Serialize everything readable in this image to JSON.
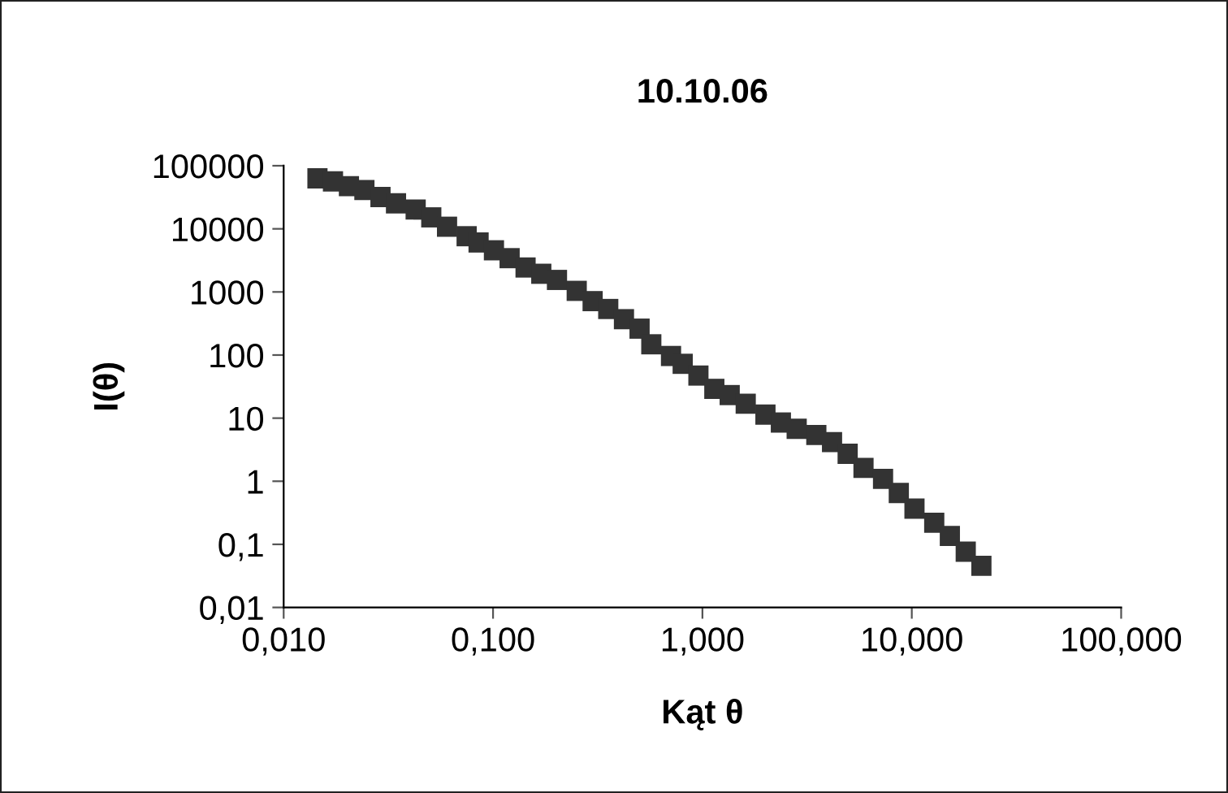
{
  "chart_data": {
    "type": "scatter",
    "title": "10.10.06",
    "xlabel": "Kąt θ",
    "ylabel": "I(θ)",
    "log": "xy",
    "grid": false,
    "legend": false,
    "marker": "square",
    "x": [
      0.0145,
      0.0172,
      0.0205,
      0.0243,
      0.029,
      0.0344,
      0.0427,
      0.0507,
      0.0603,
      0.0748,
      0.0853,
      0.101,
      0.12,
      0.143,
      0.17,
      0.202,
      0.251,
      0.299,
      0.355,
      0.422,
      0.501,
      0.57,
      0.708,
      0.805,
      0.957,
      1.14,
      1.35,
      1.61,
      2.0,
      2.37,
      2.82,
      3.5,
      4.16,
      4.94,
      5.88,
      7.29,
      8.67,
      10.3,
      12.8,
      15.2,
      18.1,
      21.5
    ],
    "series": [
      {
        "color": "#333333",
        "values": [
          63200,
          56500,
          47500,
          41200,
          31900,
          25400,
          20200,
          15200,
          10800,
          7640,
          6080,
          4570,
          3430,
          2440,
          1940,
          1550,
          1040,
          715,
          537,
          370,
          262,
          148,
          96.6,
          72.6,
          47.3,
          29.1,
          23.2,
          16.9,
          11.4,
          8.53,
          6.78,
          5.4,
          4.17,
          2.72,
          1.63,
          1.09,
          0.652,
          0.368,
          0.22,
          0.136,
          0.0764,
          0.0457
        ]
      }
    ],
    "xlim": [
      0.01,
      100
    ],
    "xticks": [
      {
        "value": 0.01,
        "label": "0,010"
      },
      {
        "value": 0.1,
        "label": "0,100"
      },
      {
        "value": 1,
        "label": "1,000"
      },
      {
        "value": 10,
        "label": "10,000"
      },
      {
        "value": 100,
        "label": "100,000"
      }
    ],
    "ylim": [
      0.01,
      100000
    ],
    "yticks": [
      {
        "value": 0.01,
        "label": "0,01"
      },
      {
        "value": 0.1,
        "label": "0,1"
      },
      1,
      10,
      100,
      1000,
      10000,
      100000
    ]
  }
}
